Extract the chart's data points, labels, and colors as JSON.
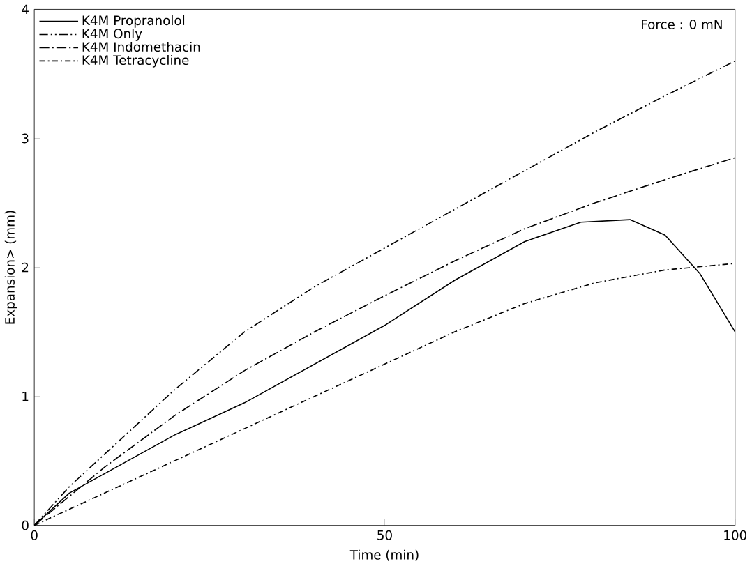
{
  "chart_data": {
    "type": "line",
    "xlabel": "Time  (min)",
    "ylabel": "Expansion>  (mm)",
    "annotations": [
      "Force : 0 mN"
    ],
    "xlim": [
      0,
      100
    ],
    "ylim": [
      0,
      4
    ],
    "xticks": [
      0,
      50,
      100
    ],
    "yticks": [
      0,
      1,
      2,
      3,
      4
    ],
    "legend": "top left",
    "grid": false,
    "series": [
      {
        "name": "K4M Propranolol",
        "color": "#000000",
        "line_style": "solid",
        "x": [
          0,
          5,
          10,
          20,
          30,
          40,
          50,
          60,
          70,
          78,
          85,
          90,
          95,
          100
        ],
        "values": [
          0,
          0.25,
          0.4,
          0.7,
          0.95,
          1.25,
          1.55,
          1.9,
          2.2,
          2.35,
          2.37,
          2.25,
          1.95,
          1.5
        ]
      },
      {
        "name": "K4M Only",
        "color": "#000000",
        "line_style": "dashdotdot",
        "x": [
          0,
          5,
          10,
          20,
          30,
          40,
          50,
          60,
          70,
          80,
          90,
          100
        ],
        "values": [
          0,
          0.3,
          0.55,
          1.05,
          1.5,
          1.85,
          2.15,
          2.45,
          2.75,
          3.05,
          3.33,
          3.6
        ]
      },
      {
        "name": "K4M Indomethacin",
        "color": "#000000",
        "line_style": "dashdot",
        "x": [
          0,
          10,
          20,
          30,
          40,
          50,
          60,
          70,
          80,
          90,
          100
        ],
        "values": [
          0,
          0.45,
          0.85,
          1.2,
          1.5,
          1.78,
          2.05,
          2.3,
          2.5,
          2.68,
          2.85
        ]
      },
      {
        "name": "K4M Tetracycline",
        "color": "#000000",
        "line_style": "loosely dashdot",
        "x": [
          0,
          10,
          20,
          30,
          40,
          50,
          60,
          70,
          80,
          90,
          100
        ],
        "values": [
          0,
          0.25,
          0.5,
          0.75,
          1.0,
          1.25,
          1.5,
          1.72,
          1.88,
          1.98,
          2.03
        ]
      }
    ]
  }
}
